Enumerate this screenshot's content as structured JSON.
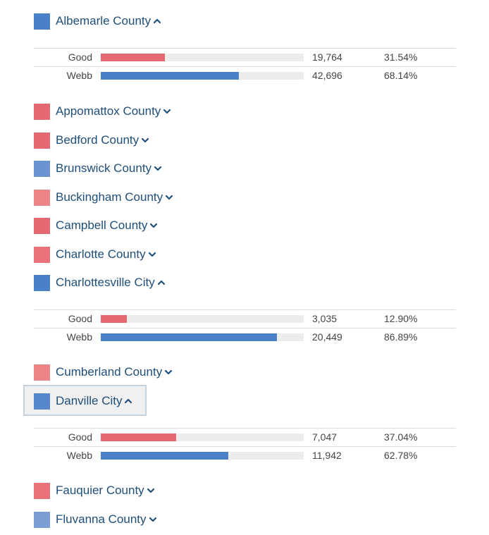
{
  "colors": {
    "good": "#e5676f",
    "webb": "#4a80c8",
    "text": "#1f4e79"
  },
  "counties": [
    {
      "name": "Albemarle County",
      "color": "#4a80c8",
      "expanded": true,
      "results": [
        {
          "candidate": "Good",
          "votes": "19,764",
          "percent": "31.54%",
          "share": 0.3154,
          "color": "#e5676f"
        },
        {
          "candidate": "Webb",
          "votes": "42,696",
          "percent": "68.14%",
          "share": 0.6814,
          "color": "#4a80c8"
        }
      ]
    },
    {
      "name": "Appomattox County",
      "color": "#e5676f",
      "expanded": false
    },
    {
      "name": "Bedford County",
      "color": "#e5676f",
      "expanded": false
    },
    {
      "name": "Brunswick County",
      "color": "#6b93cf",
      "expanded": false
    },
    {
      "name": "Buckingham County",
      "color": "#ec8488",
      "expanded": false
    },
    {
      "name": "Campbell County",
      "color": "#e5676f",
      "expanded": false
    },
    {
      "name": "Charlotte County",
      "color": "#e97378",
      "expanded": false
    },
    {
      "name": "Charlottesville City",
      "color": "#4a80c8",
      "expanded": true,
      "results": [
        {
          "candidate": "Good",
          "votes": "3,035",
          "percent": "12.90%",
          "share": 0.129,
          "color": "#e5676f"
        },
        {
          "candidate": "Webb",
          "votes": "20,449",
          "percent": "86.89%",
          "share": 0.8689,
          "color": "#4a80c8"
        }
      ]
    },
    {
      "name": "Cumberland County",
      "color": "#ec8488",
      "expanded": false
    },
    {
      "name": "Danville City",
      "color": "#5787cb",
      "expanded": true,
      "focused": true,
      "results": [
        {
          "candidate": "Good",
          "votes": "7,047",
          "percent": "37.04%",
          "share": 0.3704,
          "color": "#e5676f"
        },
        {
          "candidate": "Webb",
          "votes": "11,942",
          "percent": "62.78%",
          "share": 0.6278,
          "color": "#4a80c8"
        }
      ]
    },
    {
      "name": "Fauquier County",
      "color": "#e97378",
      "expanded": false
    },
    {
      "name": "Fluvanna County",
      "color": "#7a9ed3",
      "expanded": false
    }
  ]
}
